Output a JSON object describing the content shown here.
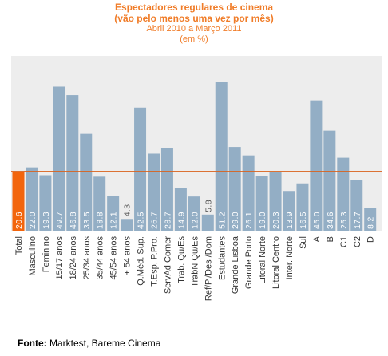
{
  "chart_data": {
    "type": "bar",
    "title": "Espectadores regulares de cinema",
    "subtitle": "(vão pelo menos uma vez por mês)",
    "period": "Abril 2010 a Março 2011",
    "unit": "(em %)",
    "categories": [
      "Total",
      "Masculino",
      "Feminino",
      "15/17 anos",
      "18/24 anos",
      "25/34 anos",
      "35/44 anos",
      "45/54 anos",
      "+ 54 anos",
      "Q.Méd. Sup.",
      "T.Esp. P.Pro.",
      "ServAd Comer",
      "Trab. Qu/Es",
      "TrabN Qu/Es",
      "Ref/P./Des /Dom",
      "Estudantes",
      "Grande Lisboa",
      "Grande Porto",
      "Litoral Norte",
      "Litoral Centro",
      "Inter. Norte",
      "Sul",
      "A",
      "B",
      "C1",
      "C2",
      "D"
    ],
    "values": [
      20.6,
      22.0,
      19.3,
      49.7,
      46.8,
      33.5,
      18.8,
      12.1,
      4.3,
      42.5,
      26.7,
      28.7,
      14.9,
      12.0,
      5.8,
      51.2,
      29.0,
      26.1,
      19.0,
      20.3,
      13.9,
      16.5,
      45.0,
      34.6,
      25.3,
      17.7,
      8.2
    ],
    "value_labels": [
      "20.6",
      "22.0",
      "19.3",
      "49.7",
      "46.8",
      "33.5",
      "18.8",
      "12.1",
      "4.3",
      "42.5",
      "26.7",
      "28.7",
      "14.9",
      "12.0",
      "5.8",
      "51.2",
      "29.0",
      "26.1",
      "19.0",
      "20.3",
      "13.9",
      "16.5",
      "45.0",
      "34.6",
      "25.3",
      "17.7",
      "8.2"
    ],
    "highlight_index": 0,
    "reference_line": 20.6,
    "ylim": [
      0,
      55
    ],
    "grid": false,
    "legend": "none",
    "colors": {
      "bar": "#93aec5",
      "highlight": "#f2650d",
      "reference": "#d9601a",
      "plot_bg": "#ededed",
      "title": "#f07c28",
      "value_label": "#ffffff"
    }
  },
  "source": {
    "label": "Fonte:",
    "text": "Marktest, Bareme Cinema"
  }
}
